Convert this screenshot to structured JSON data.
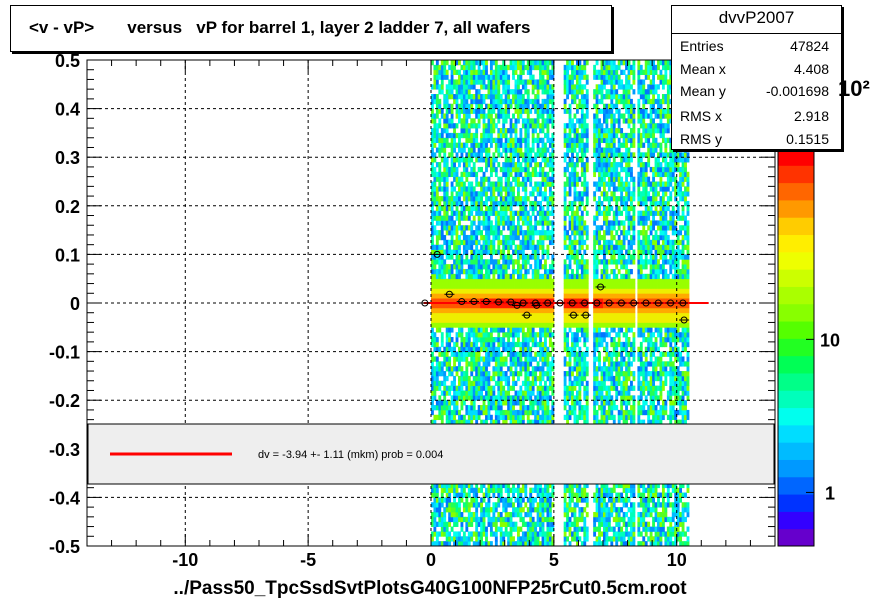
{
  "chart_data": {
    "type": "heatmap",
    "title": "<v - vP>       versus   vP for barrel 1, layer 2 ladder 7, all wafers",
    "xlabel": "../Pass50_TpcSsdSvtPlotsG40G100NFP25rCut0.5cm.root",
    "ylabel": "",
    "xlim": [
      -14,
      14
    ],
    "ylim": [
      -0.5,
      0.5
    ],
    "x_ticks": [
      -10,
      -5,
      0,
      5,
      10
    ],
    "y_ticks": [
      -0.5,
      -0.4,
      -0.3,
      -0.2,
      -0.1,
      0,
      0.1,
      0.2,
      0.3,
      0.4,
      0.5
    ],
    "x_tick_labels": [
      "-10",
      "-5",
      "0",
      "5",
      "10"
    ],
    "y_tick_labels": [
      "-0.5",
      "-0.4",
      "-0.3",
      "-0.2",
      "-0.1",
      "0",
      "0.1",
      "0.2",
      "0.3",
      "0.4",
      "0.5"
    ],
    "grid": true,
    "log_z": true,
    "data_x_range": [
      0,
      10.5
    ],
    "gaps_x": [
      [
        5.0,
        5.4
      ],
      [
        6.4,
        6.6
      ],
      [
        8.3,
        8.45
      ]
    ],
    "profile_points": [
      {
        "x": -0.25,
        "y": 0.0
      },
      {
        "x": 0.25,
        "y": 0.1
      },
      {
        "x": 0.75,
        "y": 0.018
      },
      {
        "x": 1.25,
        "y": 0.003
      },
      {
        "x": 1.75,
        "y": 0.003
      },
      {
        "x": 2.25,
        "y": 0.003
      },
      {
        "x": 2.75,
        "y": 0.002
      },
      {
        "x": 3.25,
        "y": 0.002
      },
      {
        "x": 3.75,
        "y": 0.0
      },
      {
        "x": 4.25,
        "y": 0.0
      },
      {
        "x": 4.75,
        "y": 0.0
      },
      {
        "x": 5.25,
        "y": 0.0
      },
      {
        "x": 5.75,
        "y": 0.0
      },
      {
        "x": 6.25,
        "y": 0.0
      },
      {
        "x": 6.75,
        "y": 0.0
      },
      {
        "x": 7.25,
        "y": 0.0
      },
      {
        "x": 7.75,
        "y": 0.0
      },
      {
        "x": 8.25,
        "y": 0.0
      },
      {
        "x": 8.75,
        "y": 0.0
      },
      {
        "x": 9.25,
        "y": 0.0
      },
      {
        "x": 9.75,
        "y": 0.0
      },
      {
        "x": 10.25,
        "y": 0.0
      },
      {
        "x": 3.5,
        "y": -0.005
      },
      {
        "x": 4.3,
        "y": -0.005
      },
      {
        "x": 3.9,
        "y": -0.025
      },
      {
        "x": 5.8,
        "y": -0.025
      },
      {
        "x": 6.3,
        "y": -0.025
      },
      {
        "x": 6.9,
        "y": 0.033
      },
      {
        "x": 10.3,
        "y": -0.035
      }
    ],
    "fit_line": {
      "x": [
        -0.3,
        11.3
      ],
      "y": [
        0.0,
        0.0
      ],
      "color": "#ff0000"
    },
    "legend": {
      "placement": "bottom",
      "text": "dv =   -3.94 +-  1.11 (mkm) prob = 0.004",
      "line_color": "#ff0000"
    },
    "colorbar": {
      "labels": [
        "1",
        "10",
        "10²"
      ],
      "values": [
        1,
        10,
        100
      ],
      "colors": [
        "#6600cc",
        "#3300ff",
        "#0033ff",
        "#0066ff",
        "#0099ff",
        "#00bbff",
        "#00ddff",
        "#00ffee",
        "#00ffbb",
        "#00ff88",
        "#00ff55",
        "#22ff22",
        "#55ff00",
        "#88ff00",
        "#aaff00",
        "#ccff00",
        "#eeff00",
        "#ffee00",
        "#ffcc00",
        "#ff9900",
        "#ff6600",
        "#ff3300",
        "#ff0000"
      ]
    }
  },
  "stats": {
    "name": "dvvP2007",
    "rows": [
      {
        "label": "Entries",
        "value": "47824"
      },
      {
        "label": "Mean x",
        "value": "4.408"
      },
      {
        "label": "Mean y",
        "value": "-0.001698"
      },
      {
        "label": "RMS x",
        "value": "2.918"
      },
      {
        "label": "RMS y",
        "value": "0.1515"
      }
    ]
  }
}
